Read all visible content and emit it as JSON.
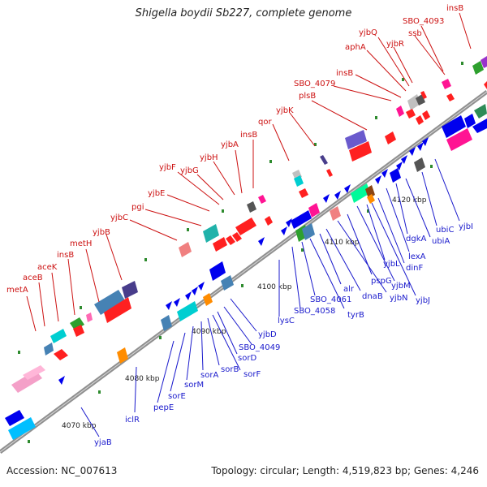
{
  "title": "Shigella boydii Sb227, complete genome",
  "footer": {
    "accession_label": "Accession: NC_007613",
    "summary": "Topology: circular; Length: 4,519,823 bp; Genes: 4,246"
  },
  "colors": {
    "backbone": "#8c8c8c",
    "label_red": "#cc1111",
    "label_blue": "#1a1acc",
    "tick_green": "#2e8b2e"
  },
  "kbp_ticks": [
    "4070 kbp",
    "4080 kbp",
    "4090 kbp",
    "4100 kbp",
    "4110 kbp",
    "4120 kbp"
  ],
  "upper_labels": [
    "metA",
    "aceB",
    "aceK",
    "insB",
    "metH",
    "yjbB",
    "yjbC",
    "pgi",
    "yjbE",
    "yjbF",
    "yjbG",
    "yjbH",
    "yjbA",
    "insB",
    "qor",
    "yjbK",
    "plsB",
    "SBO_4079",
    "insB",
    "aphA",
    "yjbQ",
    "yjbR",
    "SBO_4093",
    "ssb",
    "insB"
  ],
  "lower_labels": [
    "yjaB",
    "iclR",
    "pepE",
    "sorE",
    "sorM",
    "sorA",
    "sorB",
    "sorF",
    "sorD",
    "SBO_4049",
    "yjbD",
    "lysC",
    "SBO_4058",
    "SBO_4061",
    "tyrB",
    "alr",
    "dnaB",
    "yjbN",
    "pspG",
    "yjbM",
    "yjbL",
    "yjbJ",
    "dinF",
    "lexA",
    "dgkA",
    "ubiA",
    "ubiC",
    "yjbI"
  ]
}
